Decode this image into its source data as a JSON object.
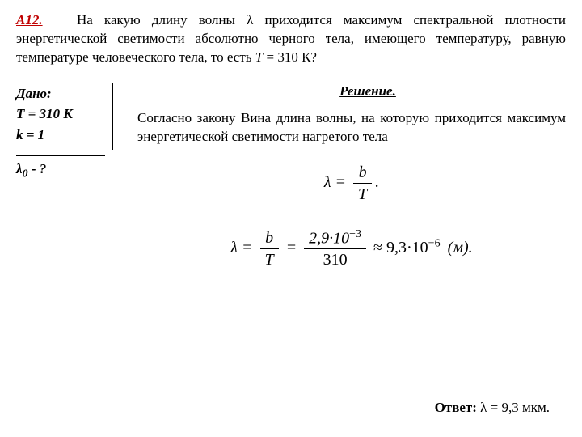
{
  "problem": {
    "number": "А12.",
    "text_before": "На какую длину волны λ приходится максимум спектральной плотности энергетической светимости абсолютно черного тела, имеющего температуру, равную температуре человеческого тела, то есть ",
    "t_expr": "Т",
    "t_value": " = 310 К?"
  },
  "given": {
    "title": "Дано:",
    "line1a": "Т = 310 К",
    "line2a": "k = 1",
    "find": "λ",
    "find_sub": "0",
    "find_tail": " - ?"
  },
  "solution": {
    "title": "Решение.",
    "para": "Согласно закону Вина длина волны, на которую приходится максимум энергетической светимости нагретого тела",
    "eq1": {
      "lhs": "λ",
      "eq": " = ",
      "num": "b",
      "den": "T",
      "tail": "."
    },
    "eq2": {
      "lhs": "λ",
      "eq": " = ",
      "num1": "b",
      "den1": "T",
      "eq2": " = ",
      "num2a": "2,9",
      "num2b": "·10",
      "num2exp": "−3",
      "den2": "310",
      "approx": " ≈ 9,3·10",
      "exp2": "−6",
      "unit": "(м)."
    }
  },
  "answer": {
    "label": "Ответ:",
    "text": "  λ = 9,3 мкм."
  },
  "style": {
    "accent": "#c00000",
    "fg": "#000000",
    "bg": "#ffffff"
  }
}
